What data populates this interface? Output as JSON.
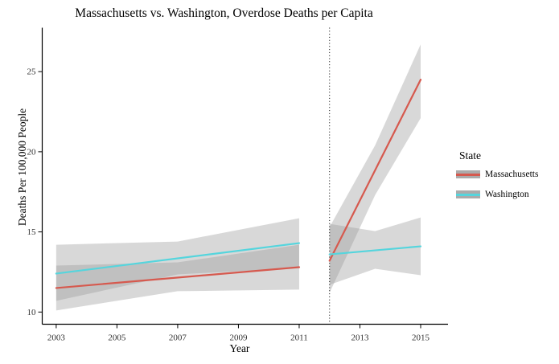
{
  "chart_data": {
    "type": "line",
    "title": "Massachusetts vs. Washington, Overdose Deaths per Capita",
    "xlabel": "Year",
    "ylabel": "Deaths Per 100,000 People",
    "xlim": [
      2002.54,
      2015.9
    ],
    "ylim": [
      9.24,
      27.74
    ],
    "x_ticks": [
      2003,
      2005,
      2007,
      2009,
      2011,
      2013,
      2015
    ],
    "y_ticks": [
      10,
      15,
      20,
      25
    ],
    "grid": false,
    "legend_position": "right",
    "intervention_line": {
      "x": 2012,
      "style": "dotted",
      "color": "#000000"
    },
    "band": {
      "color": "#999999",
      "opacity": 0.38
    },
    "legend": {
      "title": "State",
      "entries": [
        {
          "label": "Massachusetts",
          "color": "#d6594e"
        },
        {
          "label": "Washington",
          "color": "#55d5dd"
        }
      ]
    },
    "series": [
      {
        "name": "Massachusetts",
        "segment": "pre-2012",
        "color": "#d6594e",
        "x": [
          2003,
          2011
        ],
        "y": [
          11.5,
          12.8
        ],
        "ribbon": {
          "x": [
            2003,
            2007,
            2011
          ],
          "lower": [
            10.1,
            11.3,
            11.4
          ],
          "upper": [
            12.9,
            13.1,
            14.2
          ]
        }
      },
      {
        "name": "Massachusetts",
        "segment": "post-2012",
        "color": "#d6594e",
        "x": [
          2012,
          2015
        ],
        "y": [
          13.2,
          24.5
        ],
        "ribbon": {
          "x": [
            2012,
            2013.5,
            2015
          ],
          "lower": [
            11.2,
            17.3,
            22.1
          ],
          "upper": [
            15.3,
            20.4,
            26.7
          ]
        }
      },
      {
        "name": "Washington",
        "segment": "pre-2012",
        "color": "#55d5dd",
        "x": [
          2003,
          2011
        ],
        "y": [
          12.4,
          14.3
        ],
        "ribbon": {
          "x": [
            2003,
            2007,
            2011
          ],
          "lower": [
            10.7,
            12.35,
            12.75
          ],
          "upper": [
            14.2,
            14.4,
            15.85
          ]
        }
      },
      {
        "name": "Washington",
        "segment": "post-2012",
        "color": "#55d5dd",
        "x": [
          2012,
          2013.5,
          2015
        ],
        "y": [
          13.6,
          13.85,
          14.1
        ],
        "ribbon": {
          "x": [
            2012,
            2013.5,
            2015
          ],
          "lower": [
            11.7,
            12.7,
            12.3
          ],
          "upper": [
            15.5,
            15.05,
            15.9
          ]
        }
      }
    ]
  }
}
